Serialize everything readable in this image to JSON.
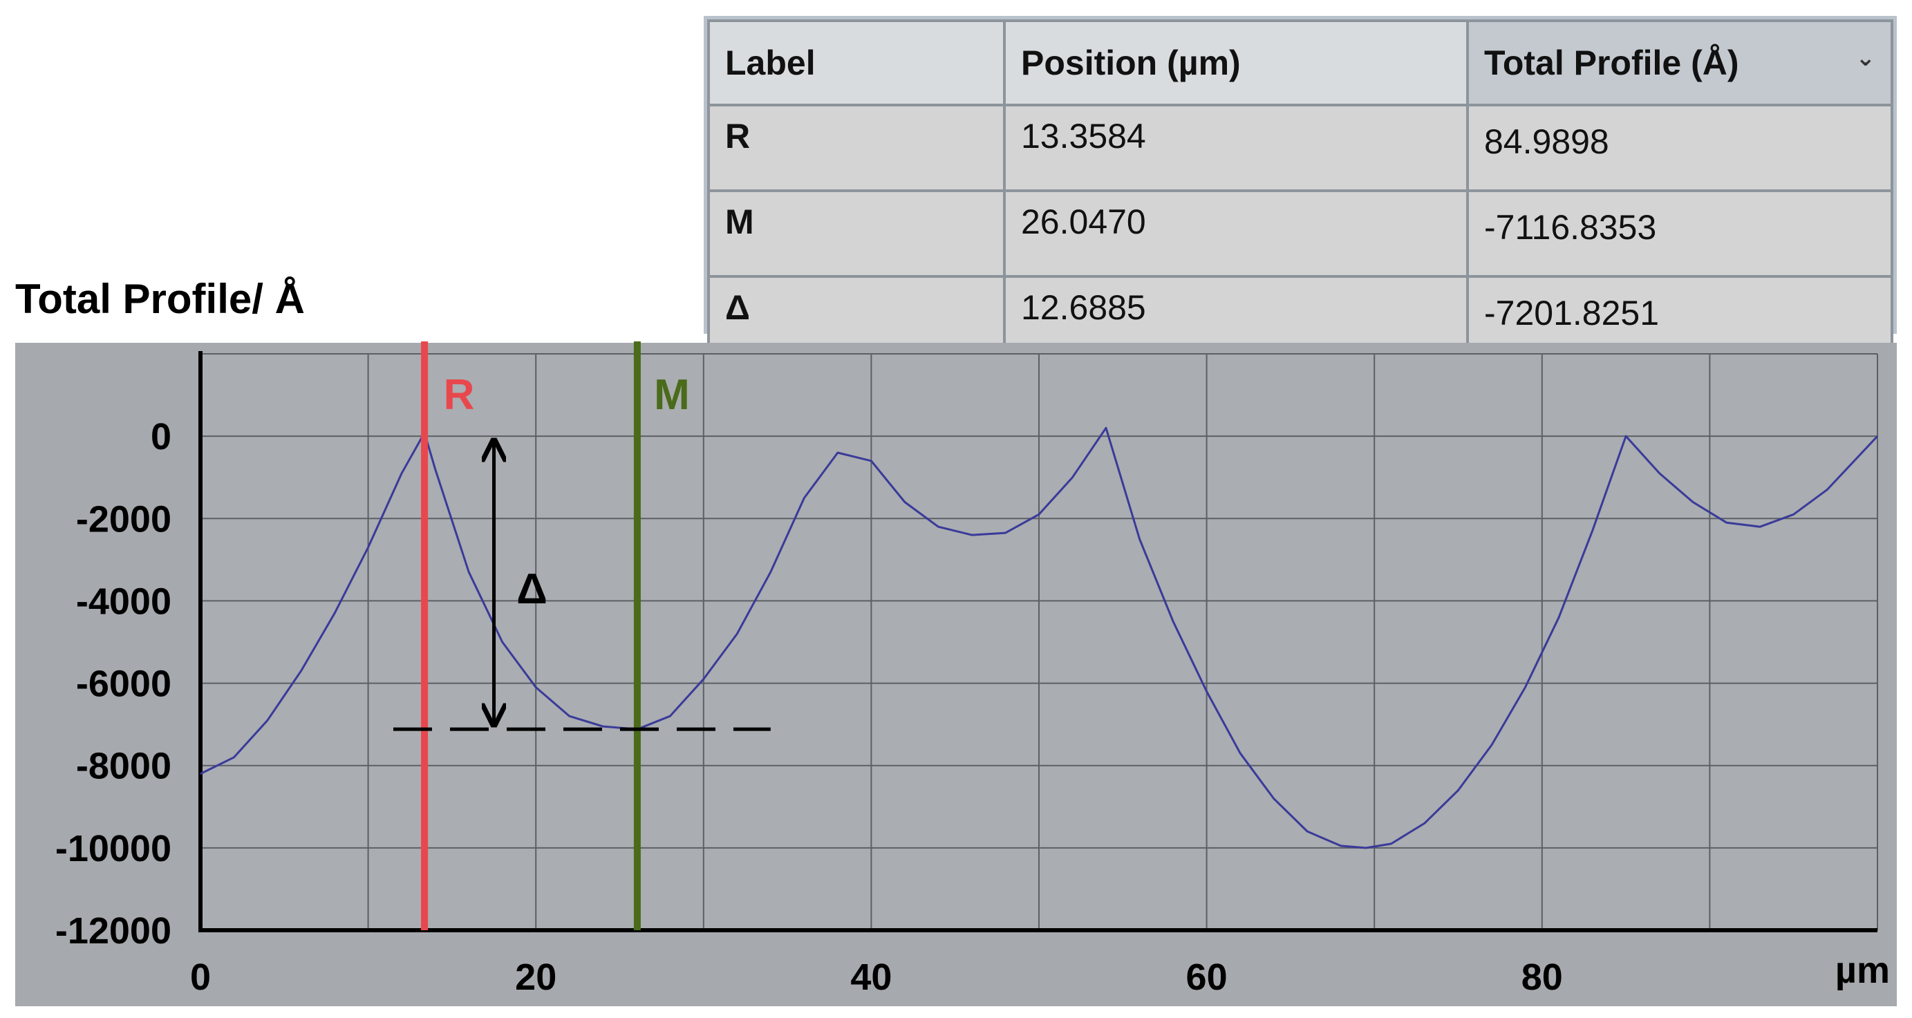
{
  "table": {
    "headers": [
      "Label",
      "Position (µm)",
      "Total Profile (Å)"
    ],
    "rows": [
      [
        "R",
        "13.3584",
        "84.9898"
      ],
      [
        "M",
        "26.0470",
        "-7116.8353"
      ],
      [
        "Δ",
        "12.6885",
        "-7201.8251"
      ]
    ]
  },
  "chart_data": {
    "type": "line",
    "ylabel": "Total Profile/ Å",
    "xlabel": "µm",
    "xlim": [
      0,
      100
    ],
    "ylim": [
      -12000,
      2000
    ],
    "xticks": [
      0,
      20,
      40,
      60,
      80
    ],
    "yticks": [
      0,
      -2000,
      -4000,
      -6000,
      -8000,
      -10000,
      -12000
    ],
    "grid": true,
    "colors": {
      "line": "#3a3a9a",
      "R": "#e8484d",
      "M": "#4a6b1a",
      "plot_bg": "#a9acb0"
    },
    "series": [
      {
        "x": [
          0,
          2,
          4,
          6,
          8,
          10,
          12,
          13.36,
          14,
          16,
          18,
          20,
          22,
          24,
          26.05,
          28,
          30,
          32,
          34,
          36,
          38,
          39,
          40,
          42,
          44,
          46,
          48,
          50,
          52,
          54,
          56,
          58,
          60,
          62,
          64,
          66,
          68,
          69.5,
          71,
          73,
          75,
          77,
          79,
          81,
          83,
          85,
          87,
          89,
          91,
          93,
          95,
          97,
          100
        ],
        "y": [
          -8200,
          -7800,
          -6900,
          -5700,
          -4300,
          -2700,
          -900,
          85,
          -800,
          -3300,
          -5000,
          -6100,
          -6800,
          -7050,
          -7117,
          -6800,
          -5900,
          -4800,
          -3300,
          -1500,
          -400,
          -500,
          -600,
          -1600,
          -2200,
          -2400,
          -2350,
          -1900,
          -1000,
          200,
          -2500,
          -4500,
          -6200,
          -7700,
          -8800,
          -9600,
          -9950,
          -10000,
          -9900,
          -9400,
          -8600,
          -7500,
          -6100,
          -4400,
          -2300,
          0,
          -900,
          -1600,
          -2100,
          -2200,
          -1900,
          -1300,
          0
        ]
      }
    ],
    "markers": [
      {
        "label": "R",
        "x": 13.3584
      },
      {
        "label": "M",
        "x": 26.047
      }
    ],
    "annotation": {
      "label": "Δ",
      "x": 17.5,
      "from": 0,
      "to": -7116.8353
    }
  }
}
